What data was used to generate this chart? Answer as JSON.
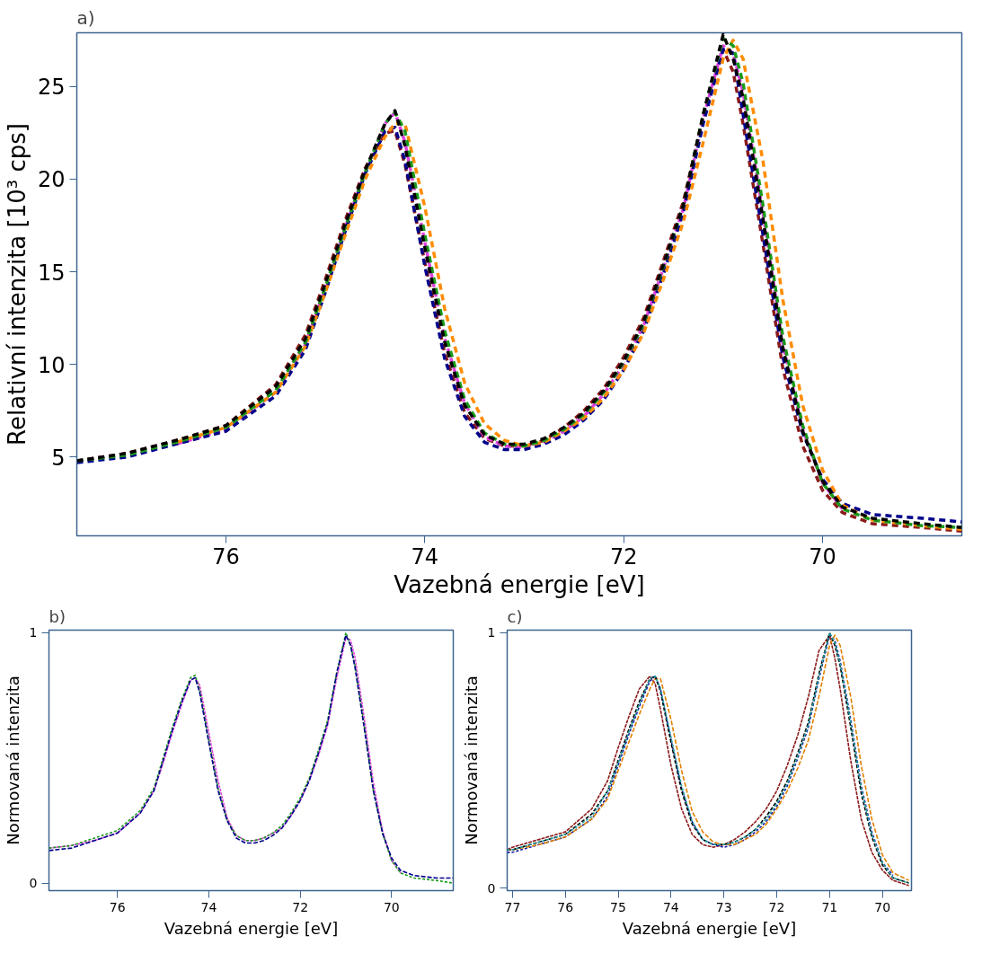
{
  "chart_data": [
    {
      "type": "line",
      "title": "a)",
      "xlabel": "Vazebná energie [eV]",
      "ylabel": "Relativní intenzita [10³ cps]",
      "xlim": [
        77.5,
        68.6
      ],
      "ylim": [
        0.75,
        27.9
      ],
      "xticks": [
        76,
        74,
        72,
        70
      ],
      "yticks": [
        5,
        10,
        15,
        20,
        25
      ],
      "line_style": "dashed",
      "x": [
        77.5,
        77.0,
        76.5,
        76.0,
        75.5,
        75.2,
        75.0,
        74.8,
        74.6,
        74.4,
        74.3,
        74.2,
        74.0,
        73.8,
        73.6,
        73.4,
        73.2,
        73.0,
        72.8,
        72.6,
        72.4,
        72.2,
        72.0,
        71.8,
        71.6,
        71.4,
        71.2,
        71.0,
        70.9,
        70.8,
        70.6,
        70.4,
        70.2,
        70.0,
        69.8,
        69.5,
        69.0,
        68.6
      ],
      "series": [
        {
          "color": "#8b1a1a",
          "values": [
            4.8,
            5.2,
            5.9,
            6.7,
            8.9,
            11.6,
            14.6,
            17.8,
            20.6,
            22.5,
            22.6,
            20.8,
            15.5,
            10.6,
            7.4,
            6.0,
            5.6,
            5.6,
            5.9,
            6.6,
            7.5,
            8.7,
            10.4,
            12.5,
            15.6,
            18.8,
            23.4,
            27.0,
            25.8,
            23.0,
            16.5,
            9.8,
            5.6,
            3.2,
            2.0,
            1.4,
            1.2,
            1.0
          ]
        },
        {
          "color": "#e040e0",
          "values": [
            null,
            null,
            5.7,
            6.5,
            8.5,
            11.1,
            14.1,
            17.4,
            20.4,
            23.0,
            23.6,
            22.0,
            16.6,
            11.4,
            7.9,
            6.1,
            5.6,
            5.5,
            5.8,
            6.4,
            7.2,
            8.4,
            10.0,
            12.1,
            15.2,
            18.4,
            23.3,
            27.2,
            26.8,
            24.7,
            18.2,
            11.1,
            6.5,
            3.6,
            2.2,
            null,
            null,
            null
          ]
        },
        {
          "color": "#00008b",
          "values": [
            4.7,
            5.0,
            5.7,
            6.4,
            8.3,
            10.8,
            13.9,
            17.2,
            20.3,
            22.6,
            22.8,
            21.0,
            15.3,
            10.3,
            7.2,
            5.8,
            5.4,
            5.4,
            5.7,
            6.2,
            7.0,
            8.1,
            9.7,
            11.8,
            14.9,
            18.2,
            23.0,
            27.0,
            26.8,
            23.5,
            17.0,
            10.4,
            6.3,
            3.8,
            2.5,
            1.9,
            1.7,
            1.5
          ]
        },
        {
          "color": "#ff8c00",
          "values": [
            null,
            null,
            5.8,
            6.6,
            8.5,
            11.0,
            13.9,
            17.0,
            20.0,
            22.3,
            23.0,
            23.0,
            18.5,
            13.0,
            9.0,
            6.8,
            5.9,
            5.6,
            5.8,
            6.4,
            7.1,
            8.2,
            9.7,
            11.7,
            14.6,
            17.7,
            22.0,
            26.5,
            27.5,
            26.5,
            21.0,
            13.5,
            7.8,
            4.3,
            2.4,
            1.6,
            1.3,
            1.1
          ]
        },
        {
          "color": "#1a9a1a",
          "values": [
            4.8,
            5.1,
            5.8,
            6.6,
            8.6,
            11.2,
            14.2,
            17.4,
            20.4,
            23.0,
            23.6,
            22.6,
            17.0,
            11.8,
            8.1,
            6.3,
            5.7,
            5.6,
            5.9,
            6.5,
            7.3,
            8.5,
            10.1,
            12.2,
            15.3,
            18.6,
            23.5,
            27.6,
            27.2,
            25.2,
            18.6,
            11.5,
            6.7,
            3.6,
            2.2,
            1.6,
            1.3,
            1.2
          ]
        },
        {
          "color": "#000000",
          "values": [
            4.8,
            5.2,
            5.9,
            6.7,
            8.8,
            11.4,
            14.4,
            17.6,
            20.5,
            23.0,
            23.7,
            21.8,
            16.3,
            11.2,
            7.8,
            6.2,
            5.7,
            5.7,
            6.0,
            6.6,
            7.4,
            8.6,
            10.2,
            12.3,
            15.4,
            18.6,
            23.5,
            27.8,
            26.5,
            24.4,
            17.9,
            10.9,
            6.4,
            3.7,
            2.3,
            1.7,
            1.4,
            1.2
          ]
        }
      ]
    },
    {
      "type": "line",
      "title": "b)",
      "xlabel": "Vazebná energie [eV]",
      "ylabel": "Normovaná intenzita",
      "xlim": [
        77.5,
        68.65
      ],
      "ylim": [
        -0.03,
        1.01
      ],
      "xticks": [
        76,
        74,
        72,
        70
      ],
      "yticks": [
        0,
        1
      ],
      "line_style": "dashed",
      "x": [
        77.5,
        77.0,
        76.5,
        76.0,
        75.5,
        75.2,
        75.0,
        74.8,
        74.6,
        74.4,
        74.3,
        74.2,
        74.0,
        73.8,
        73.6,
        73.4,
        73.2,
        73.0,
        72.8,
        72.6,
        72.4,
        72.2,
        72.0,
        71.8,
        71.6,
        71.4,
        71.2,
        71.0,
        70.9,
        70.8,
        70.6,
        70.4,
        70.2,
        70.0,
        69.8,
        69.5,
        69.0,
        68.65
      ],
      "series": [
        {
          "color": "#e040e0",
          "values": [
            0.14,
            0.15,
            0.17,
            0.2,
            0.28,
            0.37,
            0.48,
            0.6,
            0.71,
            0.81,
            0.82,
            0.79,
            0.6,
            0.41,
            0.26,
            0.19,
            0.17,
            0.17,
            0.18,
            0.2,
            0.22,
            0.27,
            0.33,
            0.41,
            0.51,
            0.63,
            0.82,
            0.98,
            0.97,
            0.9,
            0.66,
            0.4,
            0.21,
            0.09,
            0.04,
            null,
            null,
            null
          ]
        },
        {
          "color": "#1a9a1a",
          "values": [
            0.14,
            0.15,
            0.18,
            0.21,
            0.29,
            0.38,
            0.5,
            0.62,
            0.73,
            0.82,
            0.83,
            0.77,
            0.57,
            0.38,
            0.25,
            0.19,
            0.17,
            0.17,
            0.18,
            0.2,
            0.23,
            0.28,
            0.34,
            0.42,
            0.53,
            0.65,
            0.84,
            1.0,
            0.95,
            0.87,
            0.63,
            0.37,
            0.2,
            0.09,
            0.04,
            0.02,
            0.01,
            0.0
          ]
        },
        {
          "color": "#00008b",
          "values": [
            0.13,
            0.14,
            0.17,
            0.2,
            0.28,
            0.37,
            0.49,
            0.61,
            0.72,
            0.81,
            0.82,
            0.76,
            0.56,
            0.37,
            0.25,
            0.18,
            0.16,
            0.16,
            0.17,
            0.19,
            0.22,
            0.27,
            0.33,
            0.41,
            0.52,
            0.64,
            0.84,
            0.99,
            0.95,
            0.86,
            0.62,
            0.37,
            0.2,
            0.1,
            0.05,
            0.03,
            0.02,
            0.02
          ]
        }
      ]
    },
    {
      "type": "line",
      "title": "c)",
      "xlabel": "Vazebná energie [eV]",
      "ylabel": "Normovaná intenzita",
      "xlim": [
        77.1,
        69.45
      ],
      "ylim": [
        -0.01,
        1.01
      ],
      "xticks": [
        77,
        76,
        75,
        74,
        73,
        72,
        71,
        70
      ],
      "yticks": [
        0,
        1
      ],
      "line_style": "dashed",
      "x": [
        77.1,
        77.0,
        76.5,
        76.0,
        75.5,
        75.2,
        75.0,
        74.8,
        74.6,
        74.4,
        74.3,
        74.2,
        74.0,
        73.8,
        73.6,
        73.4,
        73.2,
        73.0,
        72.8,
        72.6,
        72.4,
        72.2,
        72.0,
        71.8,
        71.6,
        71.4,
        71.2,
        71.0,
        70.9,
        70.8,
        70.6,
        70.4,
        70.2,
        70.0,
        69.8,
        69.5
      ],
      "series": [
        {
          "color": "#8b1a1a",
          "values": [
            0.15,
            0.16,
            0.19,
            0.22,
            0.31,
            0.42,
            0.55,
            0.67,
            0.78,
            0.83,
            0.8,
            0.7,
            0.48,
            0.31,
            0.21,
            0.17,
            0.16,
            0.17,
            0.19,
            0.22,
            0.26,
            0.31,
            0.38,
            0.48,
            0.6,
            0.75,
            0.93,
            0.99,
            0.9,
            0.78,
            0.5,
            0.27,
            0.14,
            0.07,
            0.03,
            0.01
          ]
        },
        {
          "color": "#1a1aa0",
          "values": [
            0.14,
            0.14,
            0.17,
            0.2,
            0.27,
            0.36,
            0.48,
            0.6,
            0.71,
            0.81,
            0.83,
            0.78,
            0.58,
            0.39,
            0.26,
            0.19,
            0.17,
            0.16,
            0.17,
            0.19,
            0.22,
            0.26,
            0.32,
            0.4,
            0.51,
            0.63,
            0.82,
            0.99,
            0.97,
            0.89,
            0.66,
            0.4,
            0.22,
            0.1,
            0.05,
            null
          ]
        },
        {
          "color": "#e08000",
          "values": [
            0.15,
            0.15,
            0.17,
            0.2,
            0.27,
            0.35,
            0.46,
            0.57,
            0.68,
            0.78,
            0.82,
            0.82,
            0.66,
            0.46,
            0.3,
            0.22,
            0.18,
            0.17,
            0.17,
            0.19,
            0.21,
            0.25,
            0.31,
            0.38,
            0.47,
            0.58,
            0.75,
            0.95,
            0.99,
            0.95,
            0.75,
            0.48,
            0.27,
            0.13,
            0.06,
            0.03
          ]
        },
        {
          "color": "#000000",
          "values": [
            0.15,
            0.15,
            0.18,
            0.21,
            0.29,
            0.38,
            0.5,
            0.62,
            0.73,
            0.82,
            0.83,
            0.77,
            0.57,
            0.38,
            0.25,
            0.19,
            0.17,
            0.17,
            0.18,
            0.2,
            0.23,
            0.28,
            0.34,
            0.42,
            0.53,
            0.65,
            0.84,
            1.0,
            0.95,
            0.87,
            0.63,
            0.37,
            0.2,
            0.09,
            0.04,
            0.02
          ]
        },
        {
          "color": "#20a0a0",
          "values": [
            0.15,
            0.15,
            0.18,
            0.21,
            0.28,
            0.38,
            0.49,
            0.61,
            0.72,
            0.82,
            0.83,
            0.78,
            0.59,
            0.4,
            0.26,
            0.19,
            0.17,
            0.17,
            0.18,
            0.2,
            0.23,
            0.27,
            0.33,
            0.41,
            0.52,
            0.64,
            0.83,
            1.0,
            0.96,
            0.88,
            0.65,
            0.39,
            0.21,
            0.1,
            0.04,
            0.02
          ]
        }
      ]
    }
  ]
}
